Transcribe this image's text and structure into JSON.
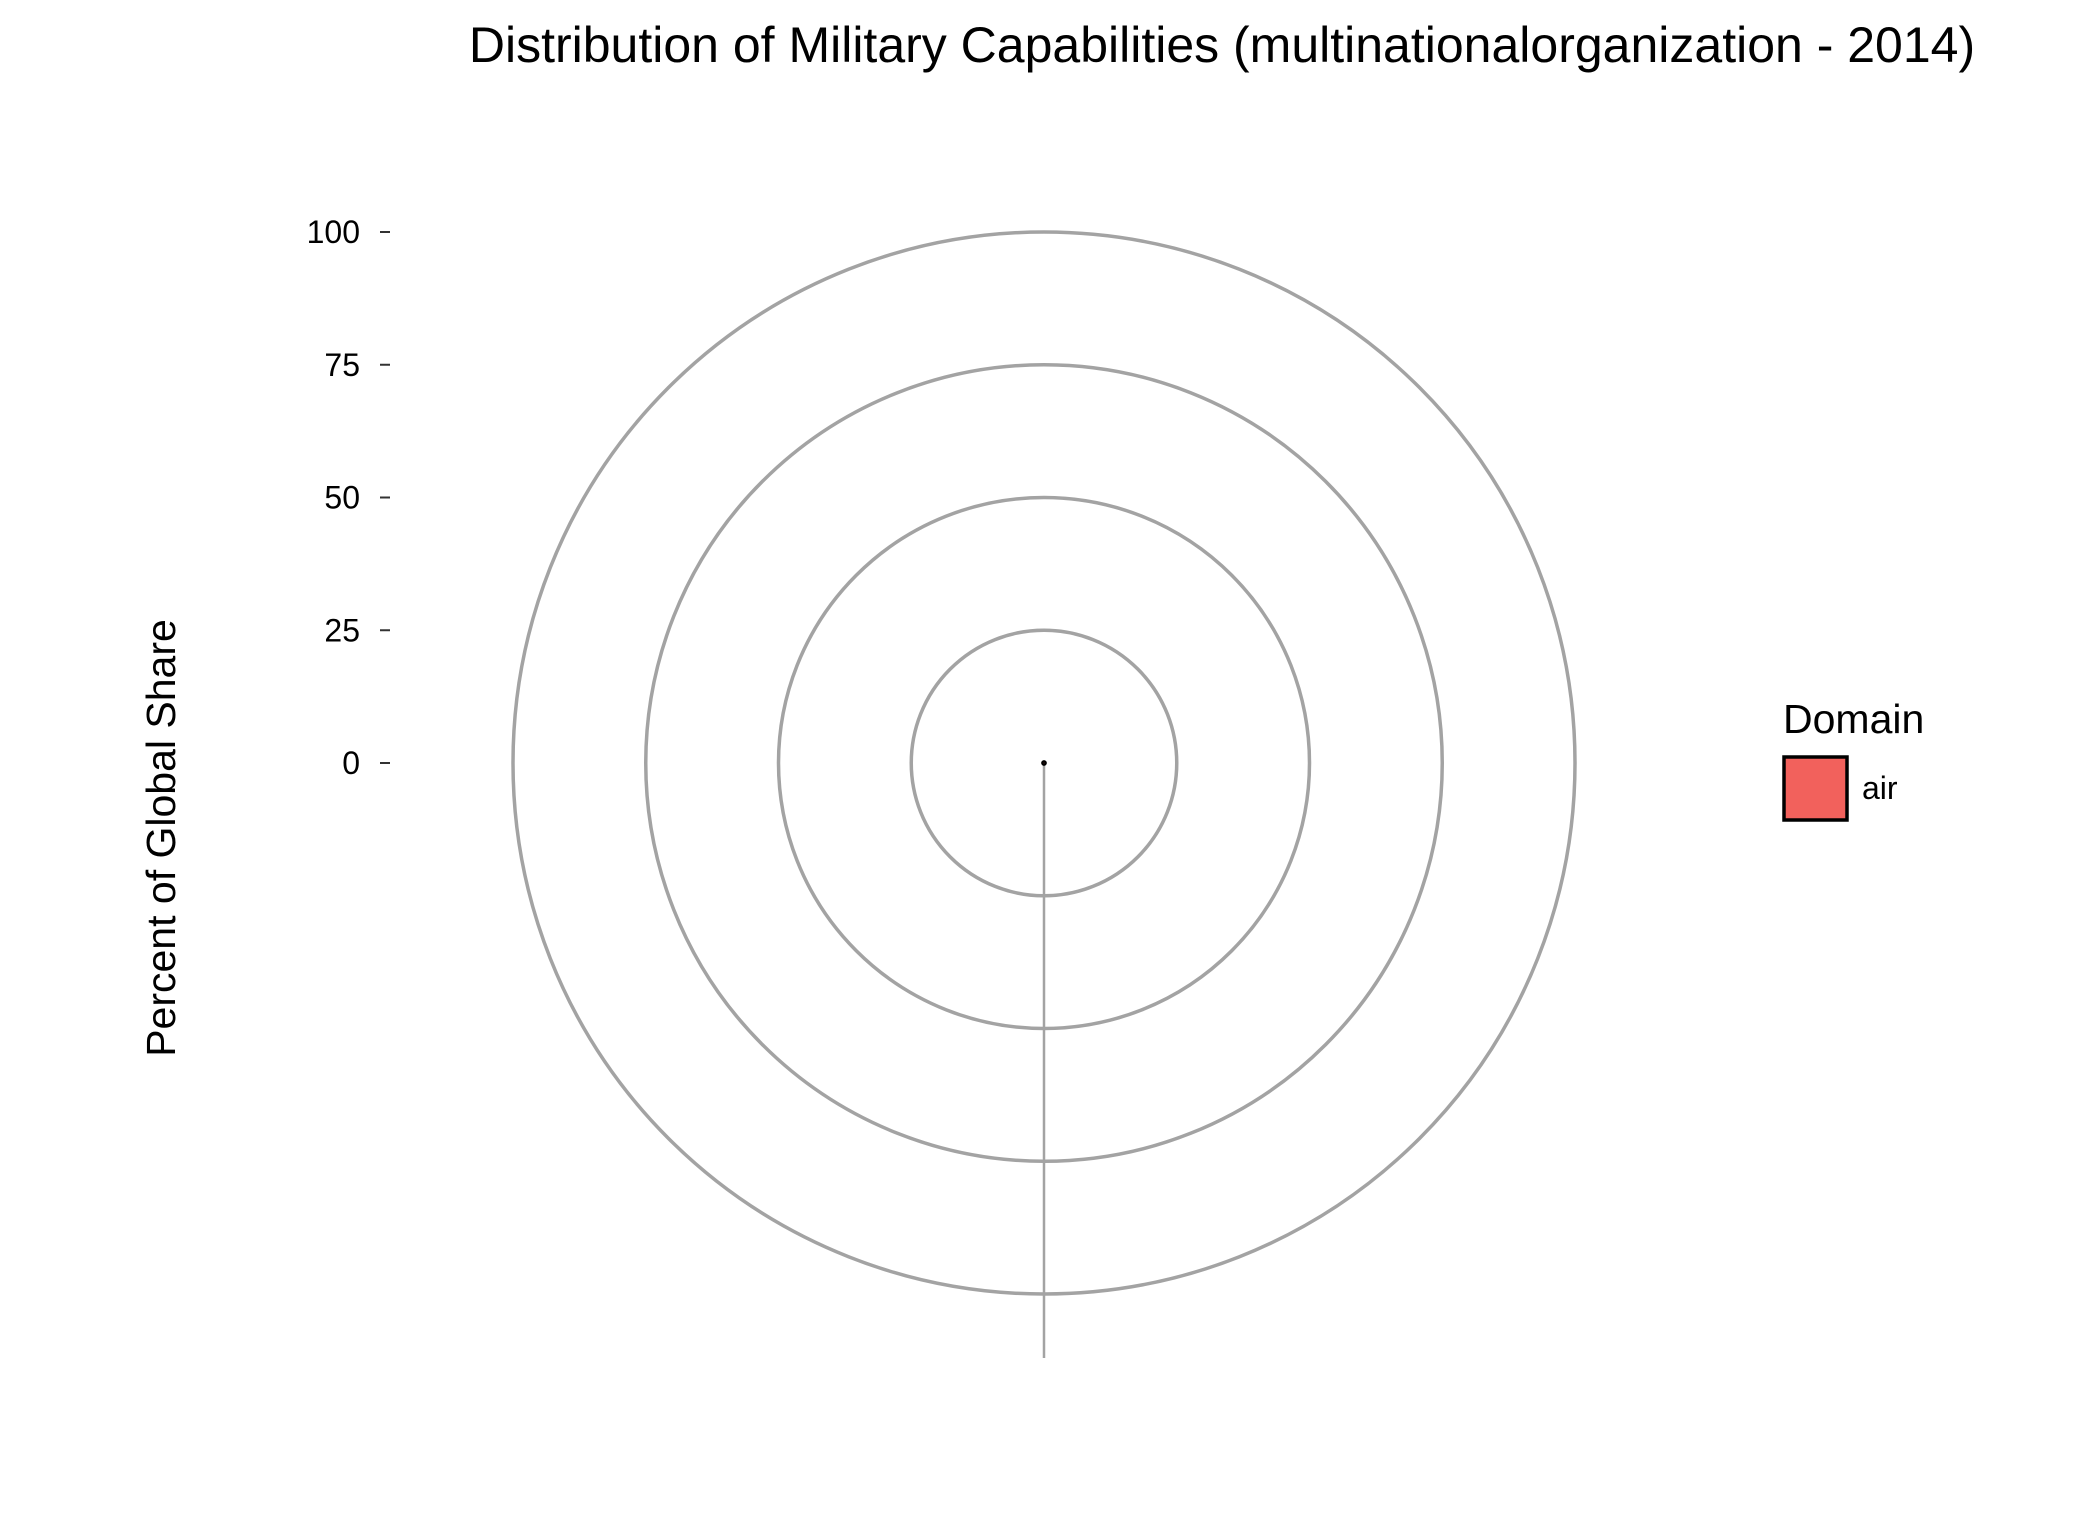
{
  "chart_data": {
    "type": "pie",
    "coord": "polar",
    "title": "Distribution of Military Capabilities (multinationalorganization - 2014)",
    "ylabel": "Percent of Global Share",
    "xlabel": "",
    "ylim": [
      0,
      100
    ],
    "yticks": [
      0,
      25,
      50,
      75,
      100
    ],
    "grid": true,
    "legend": {
      "title": "Domain",
      "placement": "right",
      "entries": [
        {
          "label": "air",
          "color": "#f2615c"
        }
      ]
    },
    "categories": [
      "air"
    ],
    "values": [
      0
    ],
    "colors": {
      "bar_fill": "#f2615c",
      "grid": "#a3a3a3",
      "outline": "#000000"
    }
  }
}
